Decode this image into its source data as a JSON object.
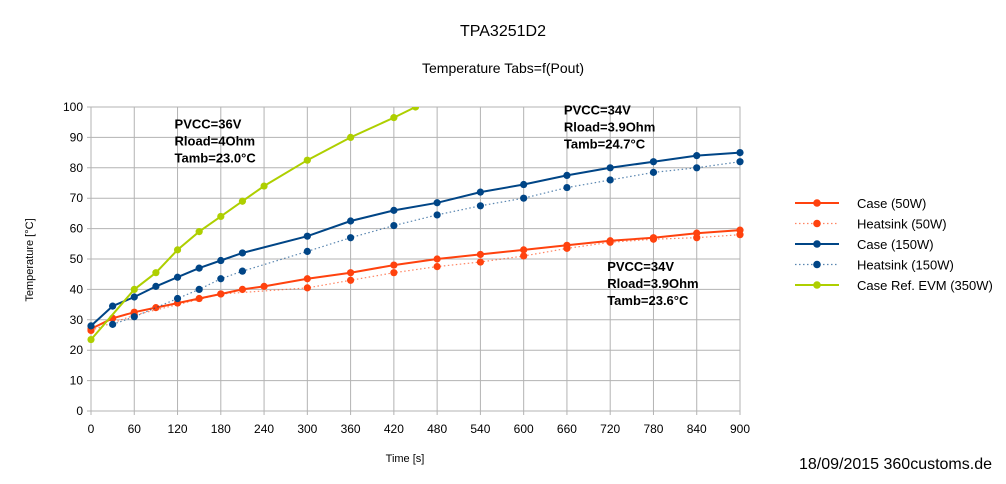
{
  "chart_data": {
    "type": "line",
    "title": "TPA3251D2",
    "subtitle": "Temperature Tabs=f(Pout)",
    "xlabel": "Time [s]",
    "ylabel": "Temperature [°C]",
    "xlim": [
      0,
      900
    ],
    "ylim": [
      0,
      100
    ],
    "xticks": [
      0,
      60,
      120,
      180,
      240,
      300,
      360,
      420,
      480,
      540,
      600,
      660,
      720,
      780,
      840,
      900
    ],
    "yticks": [
      0,
      10,
      20,
      30,
      40,
      50,
      60,
      70,
      80,
      90,
      100
    ],
    "grid": true,
    "legend_position": "right",
    "series": [
      {
        "name": "Case (50W)",
        "color": "#ff420e",
        "dash": "solid",
        "points": [
          [
            0,
            27
          ],
          [
            30,
            30.5
          ],
          [
            60,
            32.5
          ],
          [
            90,
            34
          ],
          [
            120,
            35.5
          ],
          [
            150,
            37
          ],
          [
            180,
            38.5
          ],
          [
            210,
            40
          ],
          [
            240,
            41
          ],
          [
            300,
            43.5
          ],
          [
            360,
            45.5
          ],
          [
            420,
            48
          ],
          [
            480,
            50
          ],
          [
            540,
            51.5
          ],
          [
            600,
            53
          ],
          [
            660,
            54.5
          ],
          [
            720,
            56
          ],
          [
            780,
            57
          ],
          [
            840,
            58.5
          ],
          [
            900,
            59.5
          ]
        ]
      },
      {
        "name": "Heatsink (50W)",
        "color": "#ff420e",
        "dash": "dotted",
        "points": [
          [
            0,
            26.5
          ],
          [
            60,
            31.5
          ],
          [
            180,
            38.5
          ],
          [
            300,
            40.5
          ],
          [
            360,
            43
          ],
          [
            420,
            45.5
          ],
          [
            480,
            47.5
          ],
          [
            540,
            49
          ],
          [
            600,
            51
          ],
          [
            660,
            53.5
          ],
          [
            720,
            55.5
          ],
          [
            780,
            56.5
          ],
          [
            840,
            57
          ],
          [
            900,
            58
          ]
        ]
      },
      {
        "name": "Case (150W)",
        "color": "#004586",
        "dash": "solid",
        "points": [
          [
            0,
            28
          ],
          [
            30,
            34.5
          ],
          [
            60,
            37.5
          ],
          [
            90,
            41
          ],
          [
            120,
            44
          ],
          [
            150,
            47
          ],
          [
            180,
            49.5
          ],
          [
            210,
            52
          ],
          [
            300,
            57.5
          ],
          [
            360,
            62.5
          ],
          [
            420,
            66
          ],
          [
            480,
            68.5
          ],
          [
            540,
            72
          ],
          [
            600,
            74.5
          ],
          [
            660,
            77.5
          ],
          [
            720,
            80
          ],
          [
            780,
            82
          ],
          [
            840,
            84
          ],
          [
            900,
            85
          ]
        ]
      },
      {
        "name": "Heatsink (150W)",
        "color": "#004586",
        "dash": "dotted",
        "points": [
          [
            30,
            28.5
          ],
          [
            60,
            31
          ],
          [
            120,
            37
          ],
          [
            150,
            40
          ],
          [
            180,
            43.5
          ],
          [
            210,
            46
          ],
          [
            300,
            52.5
          ],
          [
            360,
            57
          ],
          [
            420,
            61
          ],
          [
            480,
            64.5
          ],
          [
            540,
            67.5
          ],
          [
            600,
            70
          ],
          [
            660,
            73.5
          ],
          [
            720,
            76
          ],
          [
            780,
            78.5
          ],
          [
            840,
            80
          ],
          [
            900,
            82
          ]
        ]
      },
      {
        "name": "Case Ref. EVM (350W)",
        "color": "#aecf00",
        "dash": "solid",
        "points": [
          [
            0,
            23.5
          ],
          [
            60,
            40
          ],
          [
            90,
            45.5
          ],
          [
            120,
            53
          ],
          [
            150,
            59
          ],
          [
            180,
            64
          ],
          [
            210,
            69
          ],
          [
            240,
            74
          ],
          [
            300,
            82.5
          ],
          [
            360,
            90
          ],
          [
            420,
            96.5
          ],
          [
            450,
            100
          ]
        ]
      }
    ],
    "annotations": [
      {
        "lines": [
          "PVCC=36V",
          "Rload=4Ohm",
          "Tamb=23.0°C"
        ],
        "x": 120,
        "y": 93
      },
      {
        "lines": [
          "PVCC=34V",
          "Rload=3.9Ohm",
          "Tamb=24.7°C"
        ],
        "x": 660,
        "y": 97.5
      },
      {
        "lines": [
          "PVCC=34V",
          "Rload=3.9Ohm",
          "Tamb=23.6°C"
        ],
        "x": 720,
        "y": 46
      }
    ],
    "footer": "18/09/2015 360customs.de"
  }
}
